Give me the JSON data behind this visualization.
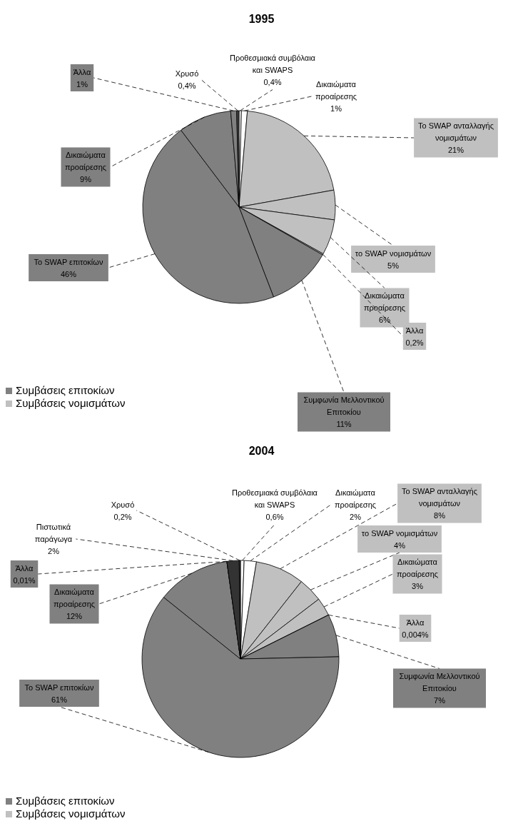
{
  "chart_data": [
    {
      "type": "pie",
      "title": "1995",
      "categories": [
        "Προθεσμιακά συμβόλαια και SWAPS",
        "Δικαιώματα προαίρεσης",
        "Το SWAP ανταλλαγής νομισμάτων",
        "το SWAP νομισμάτων",
        "Δικαιώματα προαίρεσης",
        "Άλλα",
        "Συμφωνία Μελλοντικού Επιτοκίου",
        "Το SWAP επιτοκίων",
        "Δικαιώματα προαίρεσης",
        "Άλλα",
        "Χρυσό"
      ],
      "values": [
        0.4,
        1,
        21,
        5,
        6,
        0.2,
        11,
        46,
        9,
        1,
        0.4
      ],
      "colors": [
        "#ffffff",
        "#ffffff",
        "#c0c0c0",
        "#c0c0c0",
        "#c0c0c0",
        "#c0c0c0",
        "#808080",
        "#808080",
        "#808080",
        "#808080",
        "#404040"
      ],
      "annotations": [
        "Συμβάσεις επιτοκίων",
        "Συμβάσεις νομισμάτων"
      ],
      "value_labels": [
        "0,4%",
        "1%",
        "21%",
        "5%",
        "6%",
        "0,2%",
        "11%",
        "46%",
        "9%",
        "1%",
        "0,4%"
      ]
    },
    {
      "type": "pie",
      "title": "2004",
      "categories": [
        "Προθεσμιακά συμβόλαια και SWAPS",
        "Δικαιώματα προαίρεσης",
        "Το SWAP ανταλλαγής νομισμάτων",
        "το SWAP νομισμάτων",
        "Δικαιώματα προαίρεσης",
        "Άλλα",
        "Συμφωνία Μελλοντικού Επιτοκίου",
        "Το SWAP επιτοκίων",
        "Δικαιώματα προαίρεσης",
        "Άλλα",
        "Πιστωτικά παράγωγα",
        "Χρυσό"
      ],
      "values": [
        0.6,
        2,
        8,
        4,
        3,
        0.004,
        7,
        61,
        12,
        0.01,
        2,
        0.2
      ],
      "colors": [
        "#ffffff",
        "#ffffff",
        "#c0c0c0",
        "#c0c0c0",
        "#c0c0c0",
        "#c0c0c0",
        "#808080",
        "#808080",
        "#808080",
        "#808080",
        "#333333",
        "#404040"
      ],
      "annotations": [
        "Συμβάσεις επιτοκίων",
        "Συμβάσεις νομισμάτων"
      ],
      "value_labels": [
        "0,6%",
        "2%",
        "8%",
        "4%",
        "3%",
        "0,004%",
        "7%",
        "61%",
        "12%",
        "0,01%",
        "2%",
        "0,2%"
      ]
    }
  ]
}
